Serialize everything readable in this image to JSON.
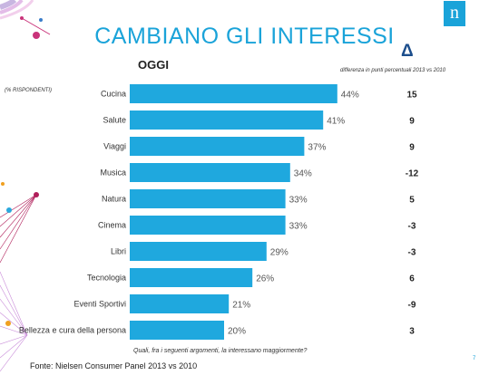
{
  "slide": {
    "title": "CAMBIANO GLI INTERESSI",
    "subtitle": "OGGI",
    "delta_symbol": "Δ",
    "delta_caption": "differenza in punti percentuali 2013 vs 2010",
    "note": "(% RISPONDENTI)",
    "question": "Quali, fra i seguenti argomenti, la interessano maggiormente?",
    "source": "Fonte: Nielsen Consumer Panel 2013 vs 2010",
    "page_number": "7",
    "logo_text": "n"
  },
  "chart_data": {
    "type": "bar",
    "orientation": "horizontal",
    "categories": [
      "Cucina",
      "Salute",
      "Viaggi",
      "Musica",
      "Natura",
      "Cinema",
      "Libri",
      "Tecnologia",
      "Eventi Sportivi",
      "Bellezza e cura della persona"
    ],
    "values": [
      44,
      41,
      37,
      34,
      33,
      33,
      29,
      26,
      21,
      20
    ],
    "value_labels": [
      "44%",
      "41%",
      "37%",
      "34%",
      "33%",
      "33%",
      "29%",
      "26%",
      "21%",
      "20%"
    ],
    "deltas": [
      "15",
      "9",
      "9",
      "-12",
      "5",
      "-3",
      "-3",
      "6",
      "-9",
      "3"
    ],
    "xlim": [
      0,
      50
    ],
    "grid": false,
    "legend": "none",
    "bar_color": "#1fa8de"
  },
  "colors": {
    "accent": "#1aa3d9",
    "delta_symbol": "#1c4e8c"
  }
}
